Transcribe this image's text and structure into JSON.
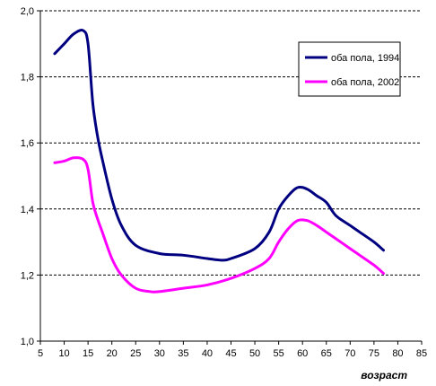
{
  "chart_data": {
    "type": "line",
    "title": "",
    "xlabel": "возраст",
    "ylabel": "",
    "xlim": [
      5,
      85
    ],
    "ylim": [
      1.0,
      2.0
    ],
    "x_ticks": [
      "5",
      "10",
      "15",
      "20",
      "25",
      "30",
      "35",
      "40",
      "45",
      "50",
      "55",
      "60",
      "65",
      "70",
      "75",
      "80",
      "85"
    ],
    "y_ticks": [
      "1,0",
      "1,2",
      "1,4",
      "1,6",
      "1,8",
      "2,0"
    ],
    "grid": "horizontal dashed",
    "legend_position": "right",
    "series": [
      {
        "name": "оба пола, 1994",
        "color": "#000080",
        "x": [
          8,
          10,
          12,
          14,
          15,
          16,
          17,
          18,
          20,
          22,
          25,
          30,
          35,
          40,
          43,
          45,
          50,
          53,
          55,
          57,
          59,
          61,
          63,
          65,
          67,
          70,
          72,
          75,
          77
        ],
        "y": [
          1.87,
          1.9,
          1.93,
          1.94,
          1.9,
          1.72,
          1.62,
          1.55,
          1.43,
          1.35,
          1.29,
          1.265,
          1.26,
          1.25,
          1.245,
          1.25,
          1.28,
          1.33,
          1.4,
          1.44,
          1.465,
          1.46,
          1.44,
          1.42,
          1.38,
          1.35,
          1.33,
          1.3,
          1.275
        ]
      },
      {
        "name": "оба пола, 2002",
        "color": "#ff00ff",
        "x": [
          8,
          10,
          12,
          14,
          15,
          16,
          17,
          18,
          20,
          22,
          25,
          28,
          30,
          35,
          40,
          45,
          50,
          53,
          55,
          57,
          59,
          61,
          63,
          65,
          67,
          70,
          72,
          75,
          77
        ],
        "y": [
          1.54,
          1.545,
          1.555,
          1.55,
          1.52,
          1.42,
          1.37,
          1.33,
          1.25,
          1.2,
          1.16,
          1.15,
          1.15,
          1.16,
          1.17,
          1.19,
          1.22,
          1.25,
          1.3,
          1.34,
          1.365,
          1.365,
          1.35,
          1.33,
          1.31,
          1.28,
          1.26,
          1.23,
          1.205
        ]
      }
    ]
  }
}
